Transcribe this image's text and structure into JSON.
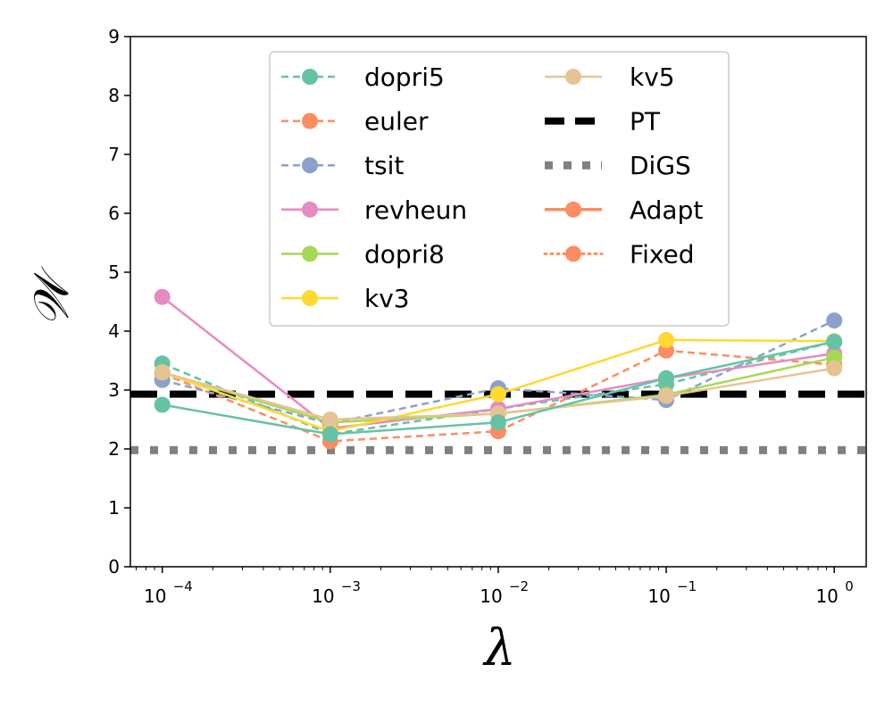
{
  "chart_data": {
    "type": "line",
    "x_scale": "log",
    "x": [
      0.0001,
      0.001,
      0.01,
      0.1,
      1
    ],
    "x_tick_labels": [
      {
        "base": "10",
        "exp": "−4"
      },
      {
        "base": "10",
        "exp": "−3"
      },
      {
        "base": "10",
        "exp": "−2"
      },
      {
        "base": "10",
        "exp": "−1"
      },
      {
        "base": "10",
        "exp": "0"
      }
    ],
    "xlim": [
      6.46e-05,
      1.55
    ],
    "ylim": [
      0,
      9
    ],
    "y_ticks": [
      0,
      1,
      2,
      3,
      4,
      5,
      6,
      7,
      8,
      9
    ],
    "xlabel": "λ",
    "ylabel": "𝒲",
    "legend_position": "top-center",
    "series": [
      {
        "name": "dopri5",
        "color": "#66c2a5",
        "style": "dashed",
        "values": [
          3.45,
          2.25,
          2.68,
          3.1,
          3.82
        ]
      },
      {
        "name": "euler",
        "color": "#fc8d62",
        "style": "dashed",
        "values": [
          3.28,
          2.13,
          2.3,
          3.67,
          3.43
        ]
      },
      {
        "name": "tsit",
        "color": "#8da0cb",
        "style": "dashed",
        "values": [
          3.17,
          2.43,
          3.03,
          2.83,
          4.18
        ]
      },
      {
        "name": "revheun",
        "color": "#e78ac3",
        "style": "solid",
        "values": [
          4.58,
          2.35,
          2.68,
          3.2,
          3.62
        ]
      },
      {
        "name": "dopri8",
        "color": "#a6d854",
        "style": "solid",
        "values": [
          3.3,
          2.45,
          2.6,
          2.92,
          3.55
        ]
      },
      {
        "name": "kv3",
        "color": "#ffd92f",
        "style": "solid",
        "values": [
          3.3,
          2.3,
          2.93,
          3.85,
          3.83
        ]
      },
      {
        "name": "kv5",
        "color": "#e5c494",
        "style": "solid",
        "values": [
          3.3,
          2.5,
          2.6,
          2.9,
          3.37
        ]
      },
      {
        "name": "dopri5-solid",
        "legend": false,
        "color": "#66c2a5",
        "style": "solid",
        "values": [
          2.75,
          2.25,
          2.45,
          3.2,
          3.82
        ]
      }
    ],
    "reference_lines": [
      {
        "name": "PT",
        "color": "#000000",
        "style": "thick-dashed",
        "value": 2.93
      },
      {
        "name": "DiGS",
        "color": "#808080",
        "style": "dotted",
        "value": 1.98
      }
    ],
    "legend_entries": [
      {
        "label": "dopri5",
        "color": "#66c2a5",
        "style": "dashed",
        "marker": true
      },
      {
        "label": "euler",
        "color": "#fc8d62",
        "style": "dashed",
        "marker": true
      },
      {
        "label": "tsit",
        "color": "#8da0cb",
        "style": "dashed",
        "marker": true
      },
      {
        "label": "revheun",
        "color": "#e78ac3",
        "style": "solid",
        "marker": true
      },
      {
        "label": "dopri8",
        "color": "#a6d854",
        "style": "solid",
        "marker": true
      },
      {
        "label": "kv3",
        "color": "#ffd92f",
        "style": "solid",
        "marker": true
      },
      {
        "label": "kv5",
        "color": "#e5c494",
        "style": "solid",
        "marker": true
      },
      {
        "label": "PT",
        "color": "#000000",
        "style": "thick-dashed",
        "marker": false
      },
      {
        "label": "DiGS",
        "color": "#808080",
        "style": "dotted",
        "marker": false
      },
      {
        "label": "Adapt",
        "color": "#fc8d62",
        "style": "solid-thick",
        "marker": true
      },
      {
        "label": "Fixed",
        "color": "#fc8d62",
        "style": "dotted",
        "marker": true
      }
    ]
  }
}
